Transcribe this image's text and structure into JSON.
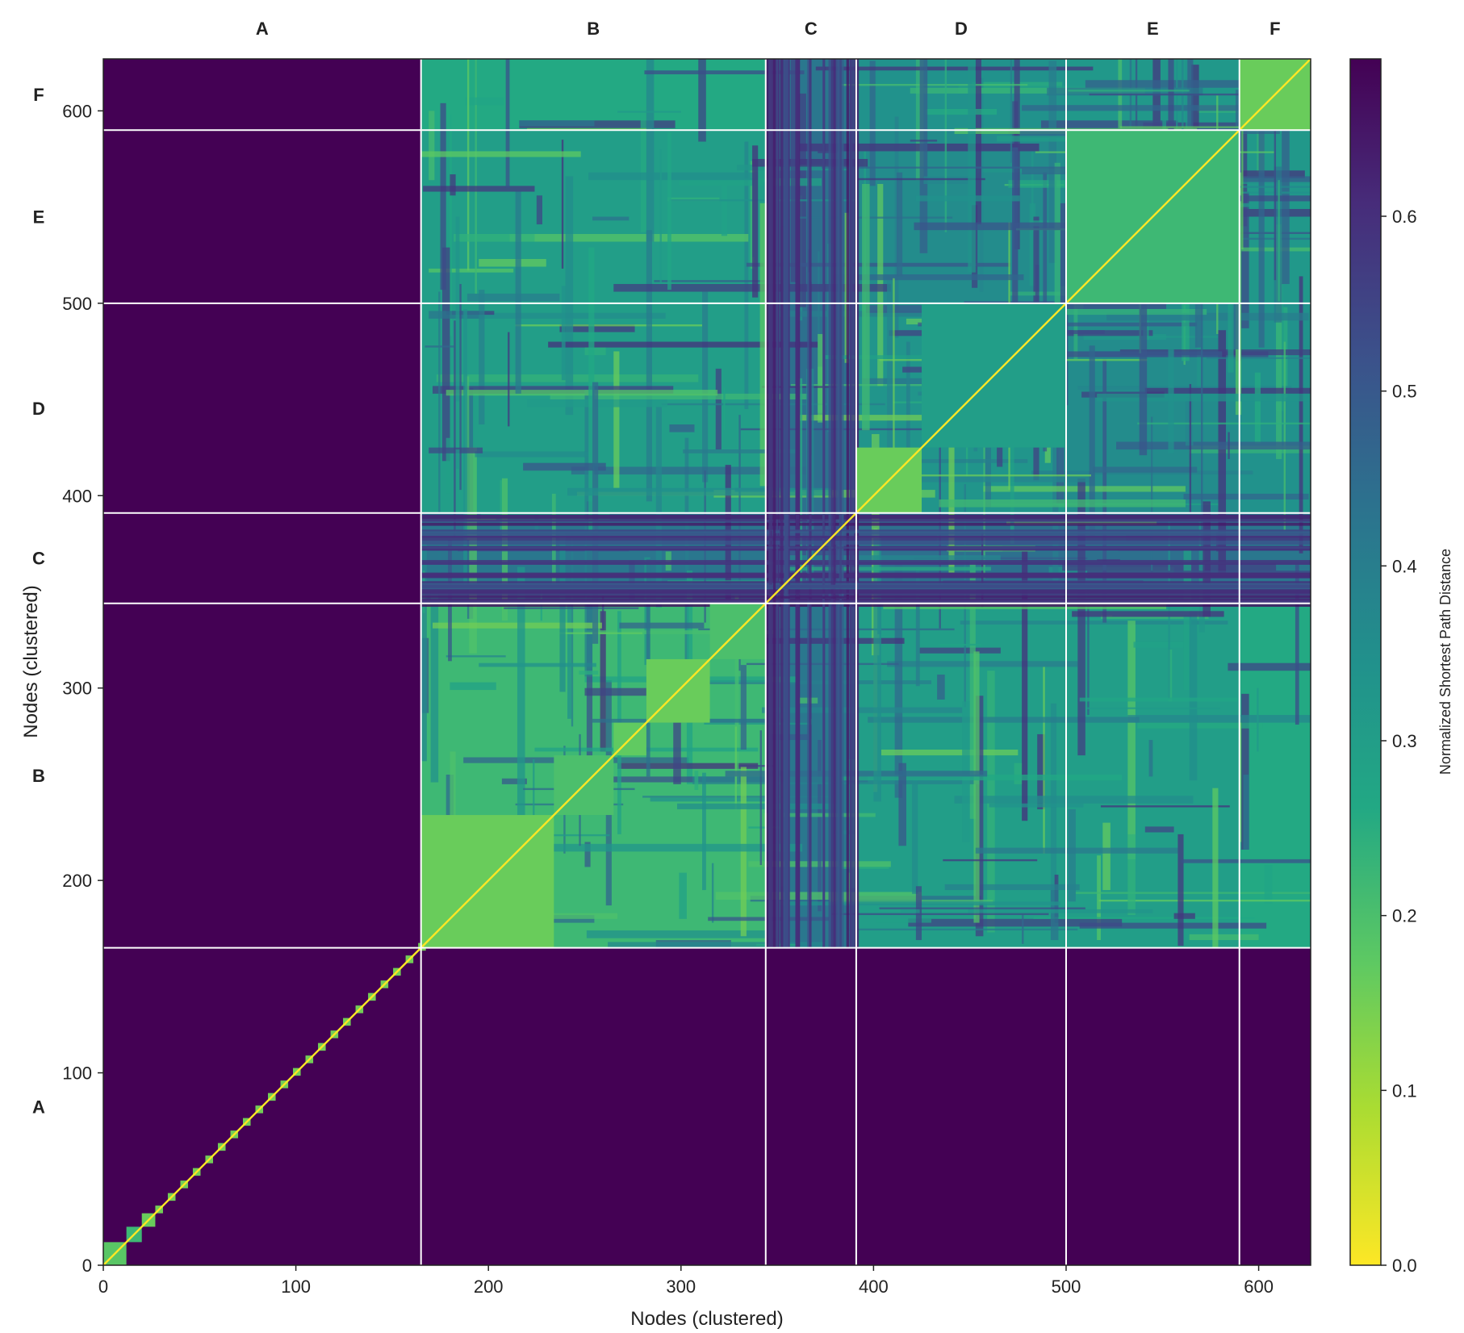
{
  "chart_data": {
    "type": "heatmap",
    "title": "",
    "xlabel": "Nodes (clustered)",
    "ylabel": "Nodes (clustered)",
    "n_nodes": 627,
    "xlim": [
      0,
      627
    ],
    "ylim": [
      0,
      627
    ],
    "x_ticks": [
      {
        "value": 0,
        "label": "0"
      },
      {
        "value": 100,
        "label": "100"
      },
      {
        "value": 200,
        "label": "200"
      },
      {
        "value": 300,
        "label": "300"
      },
      {
        "value": 400,
        "label": "400"
      },
      {
        "value": 500,
        "label": "500"
      },
      {
        "value": 600,
        "label": "600"
      }
    ],
    "y_ticks": [
      {
        "value": 0,
        "label": "0"
      },
      {
        "value": 100,
        "label": "100"
      },
      {
        "value": 200,
        "label": "200"
      },
      {
        "value": 300,
        "label": "300"
      },
      {
        "value": 400,
        "label": "400"
      },
      {
        "value": 500,
        "label": "500"
      },
      {
        "value": 600,
        "label": "600"
      }
    ],
    "clusters": [
      {
        "label": "A",
        "start": 0,
        "end": 165
      },
      {
        "label": "B",
        "start": 165,
        "end": 344
      },
      {
        "label": "C",
        "start": 344,
        "end": 391
      },
      {
        "label": "D",
        "start": 391,
        "end": 500
      },
      {
        "label": "E",
        "start": 500,
        "end": 590
      },
      {
        "label": "F",
        "start": 590,
        "end": 627
      }
    ],
    "boundaries": [
      165,
      344,
      391,
      500,
      590
    ],
    "block_values": [
      [
        0.7,
        0.7,
        0.7,
        0.7,
        0.7,
        0.7
      ],
      [
        0.7,
        0.22,
        0.42,
        0.3,
        0.3,
        0.26
      ],
      [
        0.7,
        0.42,
        0.5,
        0.44,
        0.44,
        0.42
      ],
      [
        0.7,
        0.3,
        0.44,
        0.33,
        0.36,
        0.34
      ],
      [
        0.7,
        0.3,
        0.44,
        0.36,
        0.3,
        0.32
      ],
      [
        0.7,
        0.26,
        0.42,
        0.34,
        0.32,
        0.18
      ]
    ],
    "sub_blocks": [
      {
        "start": 165,
        "end": 234,
        "value": 0.16
      },
      {
        "start": 234,
        "end": 265,
        "value": 0.2
      },
      {
        "start": 265,
        "end": 282,
        "value": 0.17
      },
      {
        "start": 282,
        "end": 315,
        "value": 0.16
      },
      {
        "start": 315,
        "end": 344,
        "value": 0.2
      },
      {
        "start": 391,
        "end": 425,
        "value": 0.16
      },
      {
        "start": 425,
        "end": 500,
        "value": 0.3
      },
      {
        "start": 500,
        "end": 590,
        "value": 0.22
      },
      {
        "start": 590,
        "end": 627,
        "value": 0.16
      }
    ],
    "a_diagonal_blocks": [
      {
        "start": 0,
        "end": 12,
        "value": 0.18
      },
      {
        "start": 12,
        "end": 20,
        "value": 0.22
      },
      {
        "start": 20,
        "end": 27,
        "value": 0.16
      }
    ],
    "diagonal_value": 0.0,
    "colorbar": {
      "label": "Normalized Shortest Path Distance",
      "colormap": "viridis_r",
      "min": 0.0,
      "max": 0.69,
      "ticks": [
        {
          "value": 0.0,
          "label": "0.0"
        },
        {
          "value": 0.1,
          "label": "0.1"
        },
        {
          "value": 0.2,
          "label": "0.2"
        },
        {
          "value": 0.3,
          "label": "0.3"
        },
        {
          "value": 0.4,
          "label": "0.4"
        },
        {
          "value": 0.5,
          "label": "0.5"
        },
        {
          "value": 0.6,
          "label": "0.6"
        }
      ]
    },
    "boundary_line_color": "#ffffff"
  }
}
